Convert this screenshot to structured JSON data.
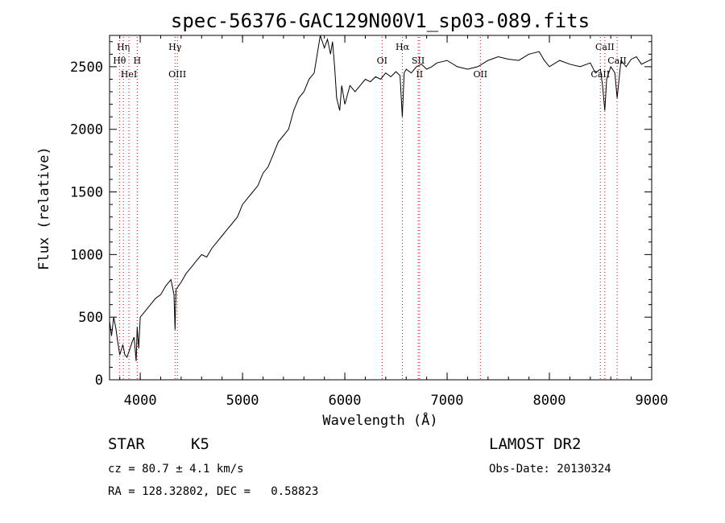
{
  "chart_data": {
    "type": "line",
    "title": "spec-56376-GAC129N00V1_sp03-089.fits",
    "xlabel": "Wavelength (Å)",
    "ylabel": "Flux (relative)",
    "xlim": [
      3700,
      9000
    ],
    "ylim": [
      0,
      2750
    ],
    "x_ticks": [
      4000,
      5000,
      6000,
      7000,
      8000,
      9000
    ],
    "y_ticks": [
      0,
      500,
      1000,
      1500,
      2000,
      2500
    ],
    "grid": false,
    "series": [
      {
        "x": [
          3700,
          3720,
          3740,
          3760,
          3780,
          3800,
          3830,
          3850,
          3870,
          3900,
          3920,
          3940,
          3960,
          3970,
          3985,
          4000,
          4050,
          4100,
          4150,
          4200,
          4250,
          4300,
          4330,
          4340,
          4350,
          4400,
          4450,
          4500,
          4550,
          4600,
          4650,
          4700,
          4750,
          4800,
          4850,
          4900,
          4950,
          5000,
          5050,
          5100,
          5150,
          5200,
          5250,
          5300,
          5350,
          5400,
          5450,
          5500,
          5550,
          5600,
          5650,
          5700,
          5730,
          5760,
          5800,
          5830,
          5860,
          5880,
          5900,
          5920,
          5950,
          5970,
          6000,
          6050,
          6100,
          6150,
          6200,
          6250,
          6300,
          6350,
          6400,
          6450,
          6500,
          6540,
          6562,
          6580,
          6600,
          6650,
          6700,
          6750,
          6800,
          6850,
          6900,
          6950,
          7000,
          7100,
          7200,
          7300,
          7400,
          7500,
          7600,
          7700,
          7800,
          7900,
          7950,
          8000,
          8100,
          8200,
          8300,
          8400,
          8450,
          8498,
          8520,
          8542,
          8560,
          8600,
          8640,
          8662,
          8700,
          8750,
          8800,
          8850,
          8900,
          8950,
          9000
        ],
        "y": [
          470,
          350,
          500,
          420,
          300,
          200,
          280,
          200,
          180,
          250,
          300,
          340,
          150,
          420,
          250,
          500,
          550,
          600,
          650,
          680,
          750,
          800,
          680,
          400,
          720,
          780,
          850,
          900,
          950,
          1000,
          980,
          1050,
          1100,
          1150,
          1200,
          1250,
          1300,
          1400,
          1450,
          1500,
          1550,
          1650,
          1700,
          1800,
          1900,
          1950,
          2000,
          2150,
          2250,
          2300,
          2400,
          2450,
          2600,
          2750,
          2650,
          2720,
          2600,
          2700,
          2500,
          2250,
          2150,
          2350,
          2200,
          2350,
          2300,
          2350,
          2400,
          2380,
          2420,
          2400,
          2450,
          2420,
          2460,
          2430,
          2100,
          2450,
          2480,
          2450,
          2500,
          2520,
          2480,
          2500,
          2530,
          2540,
          2550,
          2500,
          2480,
          2500,
          2550,
          2580,
          2560,
          2550,
          2600,
          2620,
          2550,
          2500,
          2550,
          2520,
          2500,
          2530,
          2450,
          2480,
          2350,
          2150,
          2400,
          2500,
          2450,
          2250,
          2550,
          2500,
          2560,
          2580,
          2520,
          2540,
          2560
        ]
      }
    ],
    "line_markers": [
      {
        "label": "Hη",
        "x": 3835,
        "row": 1
      },
      {
        "label": "Hθ",
        "x": 3797,
        "row": 2
      },
      {
        "label": "H",
        "x": 3970,
        "row": 2
      },
      {
        "label": "HeI",
        "x": 3889,
        "row": 3
      },
      {
        "label": "Hγ",
        "x": 4340,
        "row": 1
      },
      {
        "label": "OIII",
        "x": 4363,
        "row": 3
      },
      {
        "label": "Hα",
        "x": 6563,
        "row": 1
      },
      {
        "label": "OI",
        "x": 6364,
        "row": 2
      },
      {
        "label": "SII",
        "x": 6717,
        "row": 2
      },
      {
        "label": "II",
        "x": 6731,
        "row": 3
      },
      {
        "label": "OII",
        "x": 7325,
        "row": 3
      },
      {
        "label": "CaII",
        "x": 8542,
        "row": 1
      },
      {
        "label": "CaII",
        "x": 8662,
        "row": 2
      },
      {
        "label": "CaII",
        "x": 8498,
        "row": 3
      }
    ],
    "marker_color": "#cc0000"
  },
  "info": {
    "object_class": "STAR",
    "subclass": "K5",
    "survey": "LAMOST DR2",
    "velocity": "cz = 80.7 ± 4.1 km/s",
    "obs_date": "Obs-Date: 20130324",
    "coords": "RA = 128.32802, DEC =   0.58823"
  }
}
